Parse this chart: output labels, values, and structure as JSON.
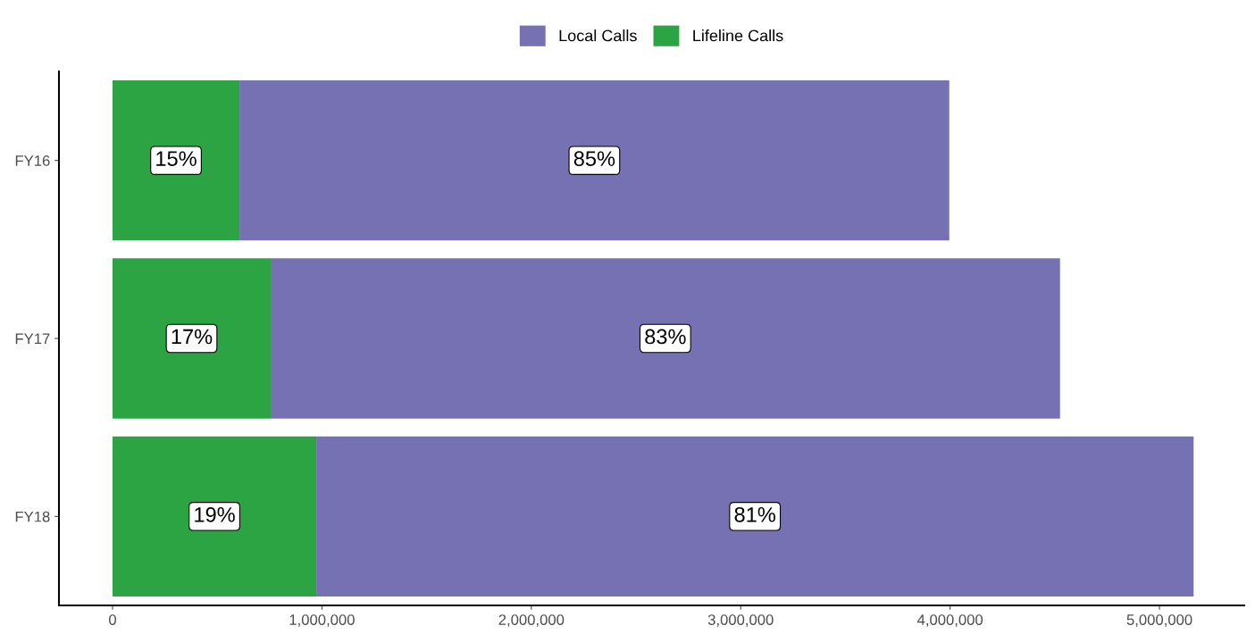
{
  "chart_data": {
    "type": "bar",
    "orientation": "horizontal",
    "stacked": true,
    "categories": [
      "FY16",
      "FY17",
      "FY18"
    ],
    "series": [
      {
        "name": "Lifeline Calls",
        "color": "#2ca444",
        "values": [
          606000,
          755000,
          973000
        ]
      },
      {
        "name": "Local Calls",
        "color": "#7671b3",
        "values": [
          3390000,
          3770000,
          4190000
        ]
      }
    ],
    "annotations": [
      "15%",
      "85%",
      "17%",
      "83%",
      "19%",
      "81%"
    ],
    "xlim": [
      -256000,
      5405000
    ],
    "xticks": [
      0,
      {
        "value": 1000000,
        "label": "1,000,000"
      },
      {
        "value": 2000000,
        "label": "2,000,000"
      },
      {
        "value": 3000000,
        "label": "3,000,000"
      },
      {
        "value": 4000000,
        "label": "4,000,000"
      },
      {
        "value": 5000000,
        "label": "5,000,000"
      }
    ],
    "grid": false,
    "legend": "top"
  }
}
